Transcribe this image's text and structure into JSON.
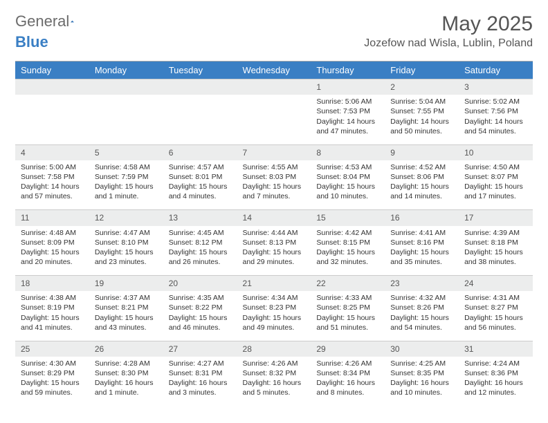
{
  "brand": {
    "part1": "General",
    "part2": "Blue"
  },
  "title": "May 2025",
  "location": "Jozefow nad Wisla, Lublin, Poland",
  "colors": {
    "header_bg": "#3a7fc4",
    "header_text": "#ffffff",
    "daynum_bg": "#eceded",
    "text": "#333333",
    "brand_gray": "#6b6b6b",
    "brand_blue": "#3a7fc4"
  },
  "weekdays": [
    "Sunday",
    "Monday",
    "Tuesday",
    "Wednesday",
    "Thursday",
    "Friday",
    "Saturday"
  ],
  "weeks": [
    [
      null,
      null,
      null,
      null,
      {
        "n": "1",
        "sr": "Sunrise: 5:06 AM",
        "ss": "Sunset: 7:53 PM",
        "dl": "Daylight: 14 hours and 47 minutes."
      },
      {
        "n": "2",
        "sr": "Sunrise: 5:04 AM",
        "ss": "Sunset: 7:55 PM",
        "dl": "Daylight: 14 hours and 50 minutes."
      },
      {
        "n": "3",
        "sr": "Sunrise: 5:02 AM",
        "ss": "Sunset: 7:56 PM",
        "dl": "Daylight: 14 hours and 54 minutes."
      }
    ],
    [
      {
        "n": "4",
        "sr": "Sunrise: 5:00 AM",
        "ss": "Sunset: 7:58 PM",
        "dl": "Daylight: 14 hours and 57 minutes."
      },
      {
        "n": "5",
        "sr": "Sunrise: 4:58 AM",
        "ss": "Sunset: 7:59 PM",
        "dl": "Daylight: 15 hours and 1 minute."
      },
      {
        "n": "6",
        "sr": "Sunrise: 4:57 AM",
        "ss": "Sunset: 8:01 PM",
        "dl": "Daylight: 15 hours and 4 minutes."
      },
      {
        "n": "7",
        "sr": "Sunrise: 4:55 AM",
        "ss": "Sunset: 8:03 PM",
        "dl": "Daylight: 15 hours and 7 minutes."
      },
      {
        "n": "8",
        "sr": "Sunrise: 4:53 AM",
        "ss": "Sunset: 8:04 PM",
        "dl": "Daylight: 15 hours and 10 minutes."
      },
      {
        "n": "9",
        "sr": "Sunrise: 4:52 AM",
        "ss": "Sunset: 8:06 PM",
        "dl": "Daylight: 15 hours and 14 minutes."
      },
      {
        "n": "10",
        "sr": "Sunrise: 4:50 AM",
        "ss": "Sunset: 8:07 PM",
        "dl": "Daylight: 15 hours and 17 minutes."
      }
    ],
    [
      {
        "n": "11",
        "sr": "Sunrise: 4:48 AM",
        "ss": "Sunset: 8:09 PM",
        "dl": "Daylight: 15 hours and 20 minutes."
      },
      {
        "n": "12",
        "sr": "Sunrise: 4:47 AM",
        "ss": "Sunset: 8:10 PM",
        "dl": "Daylight: 15 hours and 23 minutes."
      },
      {
        "n": "13",
        "sr": "Sunrise: 4:45 AM",
        "ss": "Sunset: 8:12 PM",
        "dl": "Daylight: 15 hours and 26 minutes."
      },
      {
        "n": "14",
        "sr": "Sunrise: 4:44 AM",
        "ss": "Sunset: 8:13 PM",
        "dl": "Daylight: 15 hours and 29 minutes."
      },
      {
        "n": "15",
        "sr": "Sunrise: 4:42 AM",
        "ss": "Sunset: 8:15 PM",
        "dl": "Daylight: 15 hours and 32 minutes."
      },
      {
        "n": "16",
        "sr": "Sunrise: 4:41 AM",
        "ss": "Sunset: 8:16 PM",
        "dl": "Daylight: 15 hours and 35 minutes."
      },
      {
        "n": "17",
        "sr": "Sunrise: 4:39 AM",
        "ss": "Sunset: 8:18 PM",
        "dl": "Daylight: 15 hours and 38 minutes."
      }
    ],
    [
      {
        "n": "18",
        "sr": "Sunrise: 4:38 AM",
        "ss": "Sunset: 8:19 PM",
        "dl": "Daylight: 15 hours and 41 minutes."
      },
      {
        "n": "19",
        "sr": "Sunrise: 4:37 AM",
        "ss": "Sunset: 8:21 PM",
        "dl": "Daylight: 15 hours and 43 minutes."
      },
      {
        "n": "20",
        "sr": "Sunrise: 4:35 AM",
        "ss": "Sunset: 8:22 PM",
        "dl": "Daylight: 15 hours and 46 minutes."
      },
      {
        "n": "21",
        "sr": "Sunrise: 4:34 AM",
        "ss": "Sunset: 8:23 PM",
        "dl": "Daylight: 15 hours and 49 minutes."
      },
      {
        "n": "22",
        "sr": "Sunrise: 4:33 AM",
        "ss": "Sunset: 8:25 PM",
        "dl": "Daylight: 15 hours and 51 minutes."
      },
      {
        "n": "23",
        "sr": "Sunrise: 4:32 AM",
        "ss": "Sunset: 8:26 PM",
        "dl": "Daylight: 15 hours and 54 minutes."
      },
      {
        "n": "24",
        "sr": "Sunrise: 4:31 AM",
        "ss": "Sunset: 8:27 PM",
        "dl": "Daylight: 15 hours and 56 minutes."
      }
    ],
    [
      {
        "n": "25",
        "sr": "Sunrise: 4:30 AM",
        "ss": "Sunset: 8:29 PM",
        "dl": "Daylight: 15 hours and 59 minutes."
      },
      {
        "n": "26",
        "sr": "Sunrise: 4:28 AM",
        "ss": "Sunset: 8:30 PM",
        "dl": "Daylight: 16 hours and 1 minute."
      },
      {
        "n": "27",
        "sr": "Sunrise: 4:27 AM",
        "ss": "Sunset: 8:31 PM",
        "dl": "Daylight: 16 hours and 3 minutes."
      },
      {
        "n": "28",
        "sr": "Sunrise: 4:26 AM",
        "ss": "Sunset: 8:32 PM",
        "dl": "Daylight: 16 hours and 5 minutes."
      },
      {
        "n": "29",
        "sr": "Sunrise: 4:26 AM",
        "ss": "Sunset: 8:34 PM",
        "dl": "Daylight: 16 hours and 8 minutes."
      },
      {
        "n": "30",
        "sr": "Sunrise: 4:25 AM",
        "ss": "Sunset: 8:35 PM",
        "dl": "Daylight: 16 hours and 10 minutes."
      },
      {
        "n": "31",
        "sr": "Sunrise: 4:24 AM",
        "ss": "Sunset: 8:36 PM",
        "dl": "Daylight: 16 hours and 12 minutes."
      }
    ]
  ]
}
